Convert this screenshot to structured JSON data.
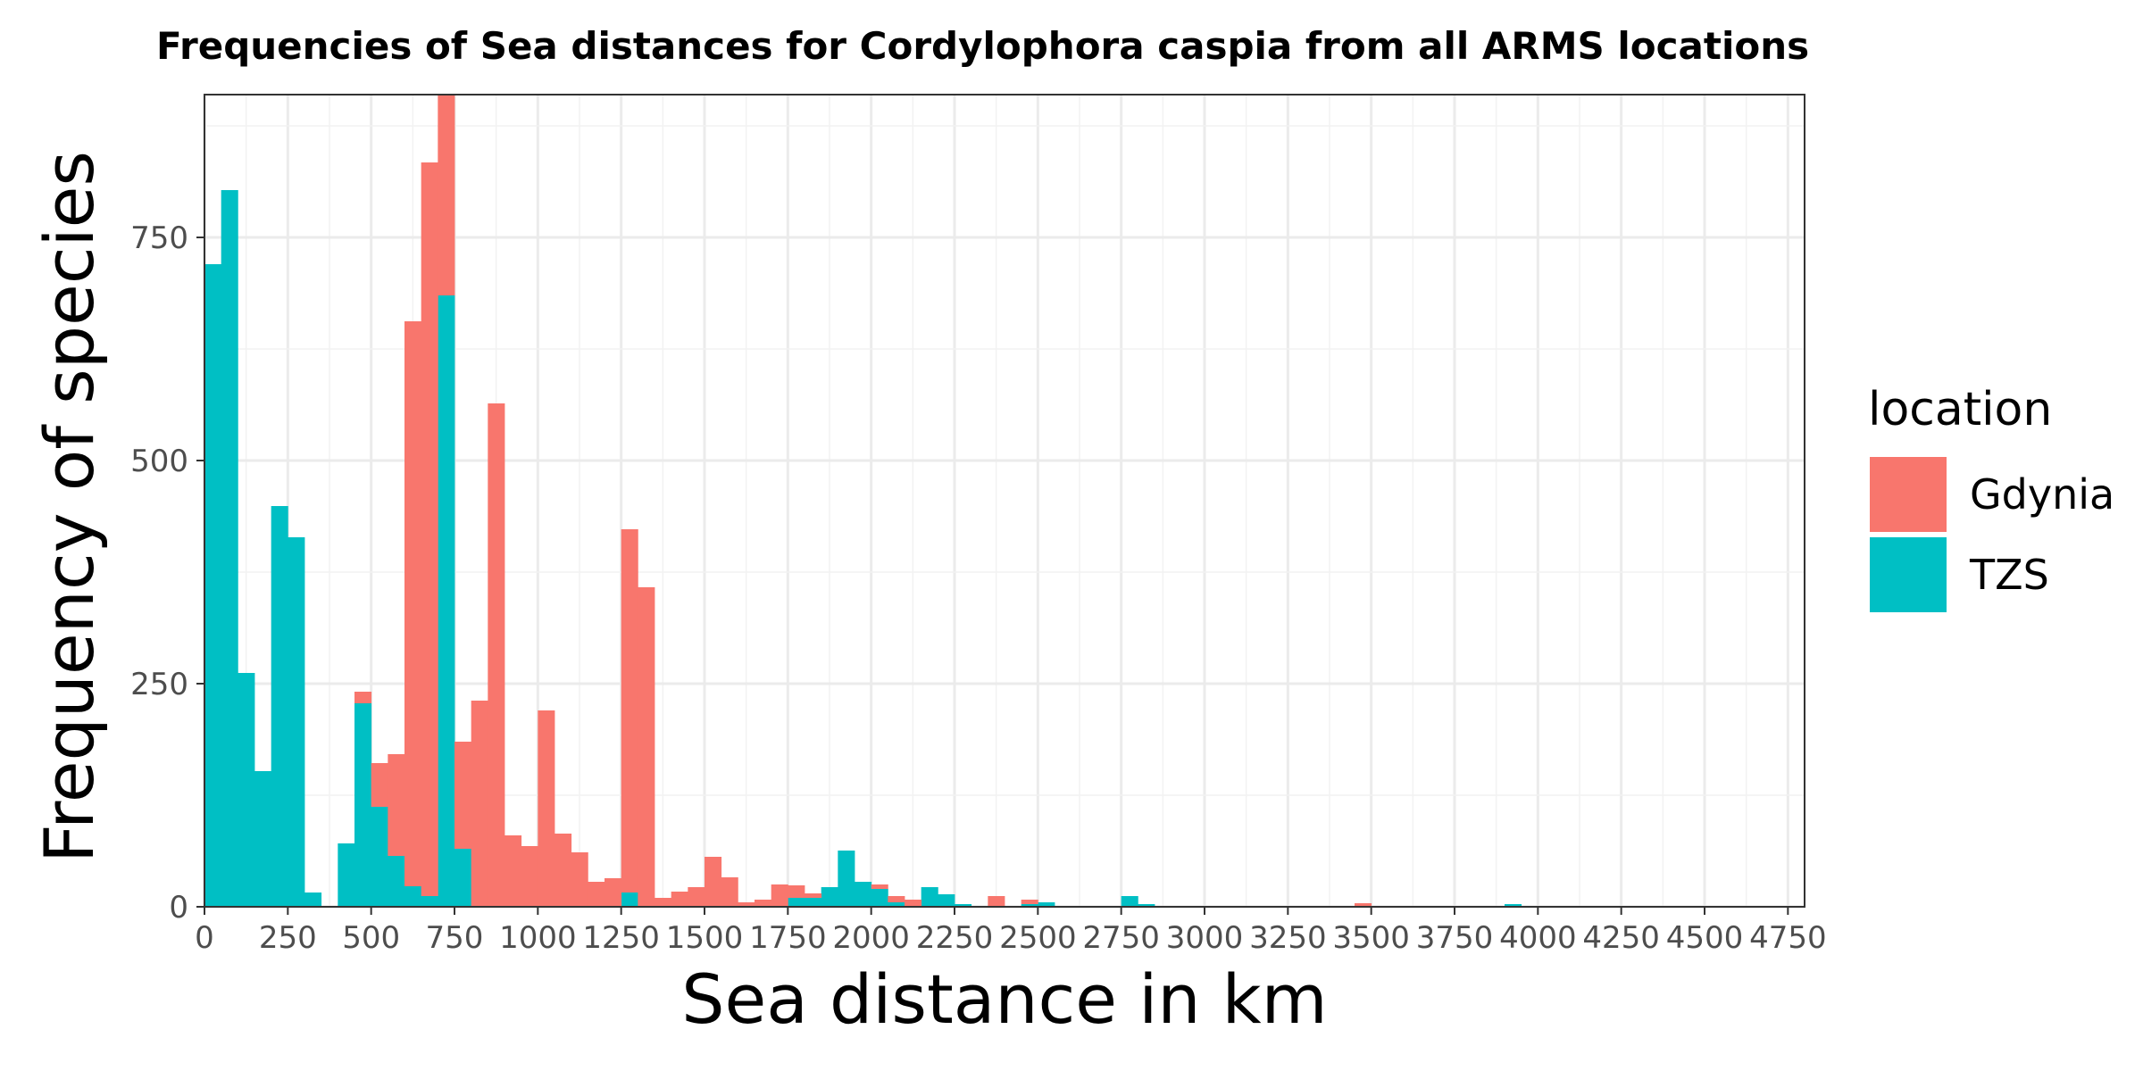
{
  "chart_data": {
    "type": "bar",
    "title": "Frequencies of Sea distances for Cordylophora caspia from all ARMS locations",
    "xlabel": "Sea distance in km",
    "ylabel": "Frequency of species",
    "xlim": [
      0,
      4800
    ],
    "ylim": [
      0,
      910
    ],
    "x_ticks": [
      0,
      250,
      500,
      750,
      1000,
      1250,
      1500,
      1750,
      2000,
      2250,
      2500,
      2750,
      3000,
      3250,
      3500,
      3750,
      4000,
      4250,
      4500,
      4750
    ],
    "y_ticks": [
      0,
      250,
      500,
      750
    ],
    "grid": true,
    "stacked": true,
    "bin_width": 50,
    "legend": {
      "title": "location",
      "position": "right",
      "entries": [
        {
          "name": "Gdynia",
          "color": "#F8766D"
        },
        {
          "name": "TZS",
          "color": "#00BFC4"
        }
      ]
    },
    "series": [
      {
        "name": "TZS",
        "color": "#00BFC4",
        "bins": [
          {
            "x": 0,
            "value": 720
          },
          {
            "x": 50,
            "value": 803
          },
          {
            "x": 100,
            "value": 262
          },
          {
            "x": 150,
            "value": 152
          },
          {
            "x": 200,
            "value": 449
          },
          {
            "x": 250,
            "value": 414
          },
          {
            "x": 300,
            "value": 16
          },
          {
            "x": 400,
            "value": 71
          },
          {
            "x": 450,
            "value": 228
          },
          {
            "x": 500,
            "value": 112
          },
          {
            "x": 550,
            "value": 57
          },
          {
            "x": 600,
            "value": 23
          },
          {
            "x": 650,
            "value": 12
          },
          {
            "x": 700,
            "value": 685
          },
          {
            "x": 750,
            "value": 65
          },
          {
            "x": 1250,
            "value": 16
          },
          {
            "x": 1750,
            "value": 10
          },
          {
            "x": 1800,
            "value": 10
          },
          {
            "x": 1850,
            "value": 22
          },
          {
            "x": 1900,
            "value": 63
          },
          {
            "x": 1950,
            "value": 28
          },
          {
            "x": 2000,
            "value": 20
          },
          {
            "x": 2050,
            "value": 5
          },
          {
            "x": 2150,
            "value": 22
          },
          {
            "x": 2200,
            "value": 14
          },
          {
            "x": 2250,
            "value": 3
          },
          {
            "x": 2450,
            "value": 3
          },
          {
            "x": 2500,
            "value": 5
          },
          {
            "x": 2750,
            "value": 12
          },
          {
            "x": 2800,
            "value": 3
          },
          {
            "x": 3900,
            "value": 3
          }
        ]
      },
      {
        "name": "Gdynia",
        "color": "#F8766D",
        "bins": [
          {
            "x": 450,
            "value": 13
          },
          {
            "x": 500,
            "value": 49
          },
          {
            "x": 550,
            "value": 114
          },
          {
            "x": 600,
            "value": 633
          },
          {
            "x": 650,
            "value": 822
          },
          {
            "x": 700,
            "value": 225
          },
          {
            "x": 750,
            "value": 120
          },
          {
            "x": 800,
            "value": 231
          },
          {
            "x": 850,
            "value": 564
          },
          {
            "x": 900,
            "value": 80
          },
          {
            "x": 950,
            "value": 68
          },
          {
            "x": 1000,
            "value": 220
          },
          {
            "x": 1050,
            "value": 82
          },
          {
            "x": 1100,
            "value": 61
          },
          {
            "x": 1150,
            "value": 28
          },
          {
            "x": 1200,
            "value": 32
          },
          {
            "x": 1250,
            "value": 407
          },
          {
            "x": 1300,
            "value": 358
          },
          {
            "x": 1350,
            "value": 10
          },
          {
            "x": 1400,
            "value": 17
          },
          {
            "x": 1450,
            "value": 22
          },
          {
            "x": 1500,
            "value": 56
          },
          {
            "x": 1550,
            "value": 33
          },
          {
            "x": 1600,
            "value": 5
          },
          {
            "x": 1650,
            "value": 8
          },
          {
            "x": 1700,
            "value": 25
          },
          {
            "x": 1750,
            "value": 14
          },
          {
            "x": 1800,
            "value": 5
          },
          {
            "x": 2000,
            "value": 5
          },
          {
            "x": 2050,
            "value": 7
          },
          {
            "x": 2100,
            "value": 8
          },
          {
            "x": 2350,
            "value": 12
          },
          {
            "x": 2450,
            "value": 5
          },
          {
            "x": 3450,
            "value": 4
          }
        ]
      }
    ]
  }
}
